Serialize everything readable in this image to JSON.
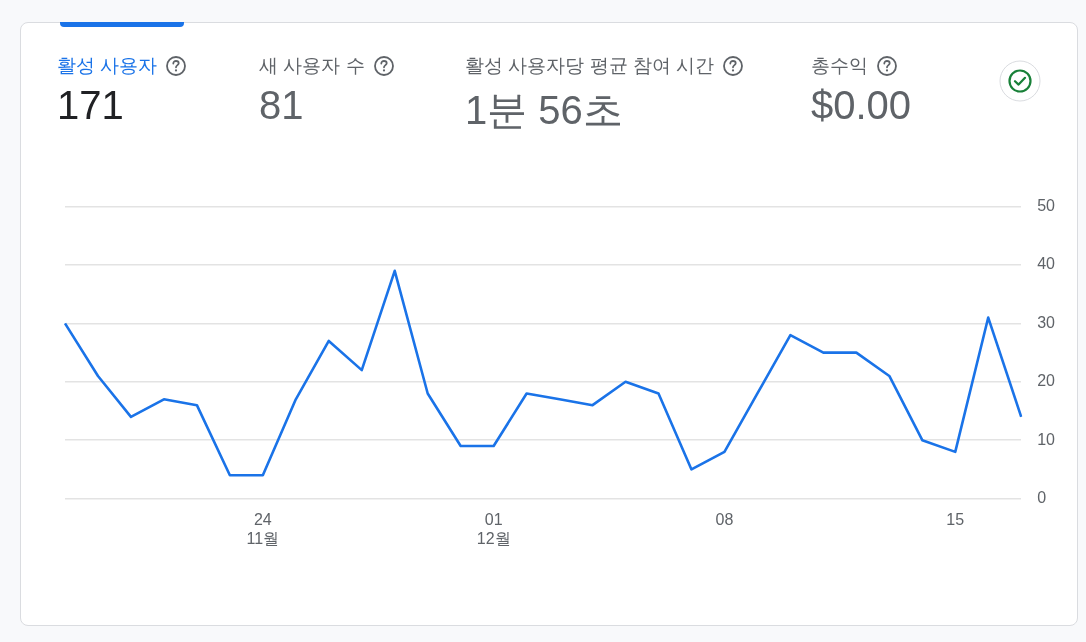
{
  "chart_data": [
    {
      "type": "other",
      "annotations": [
        "활성 사용자",
        "171",
        "새 사용자 수",
        "81",
        "활성 사용자당 평균 참여 시간",
        "1분 56초",
        "총수익",
        "$0.00"
      ]
    },
    {
      "type": "line",
      "categories": [
        null,
        null,
        null,
        null,
        null,
        null,
        "24\n11월",
        null,
        null,
        null,
        null,
        null,
        null,
        "01\n12월",
        null,
        null,
        null,
        null,
        null,
        null,
        "08",
        null,
        null,
        null,
        null,
        null,
        null,
        "15",
        null,
        null
      ],
      "series": [
        {
          "color": "#1a73e8",
          "values": [
            30,
            21,
            14,
            17,
            16,
            4,
            4,
            17,
            27,
            22,
            39,
            18,
            9,
            9,
            18,
            17,
            16,
            20,
            18,
            5,
            8,
            18,
            28,
            25,
            25,
            21,
            10,
            8,
            31,
            14
          ]
        }
      ],
      "ylim": [
        0,
        50
      ],
      "yticks": [
        0,
        10,
        20,
        30,
        40,
        50
      ],
      "grid": "y",
      "legend": false,
      "marker": "none",
      "line_style": "solid"
    }
  ]
}
